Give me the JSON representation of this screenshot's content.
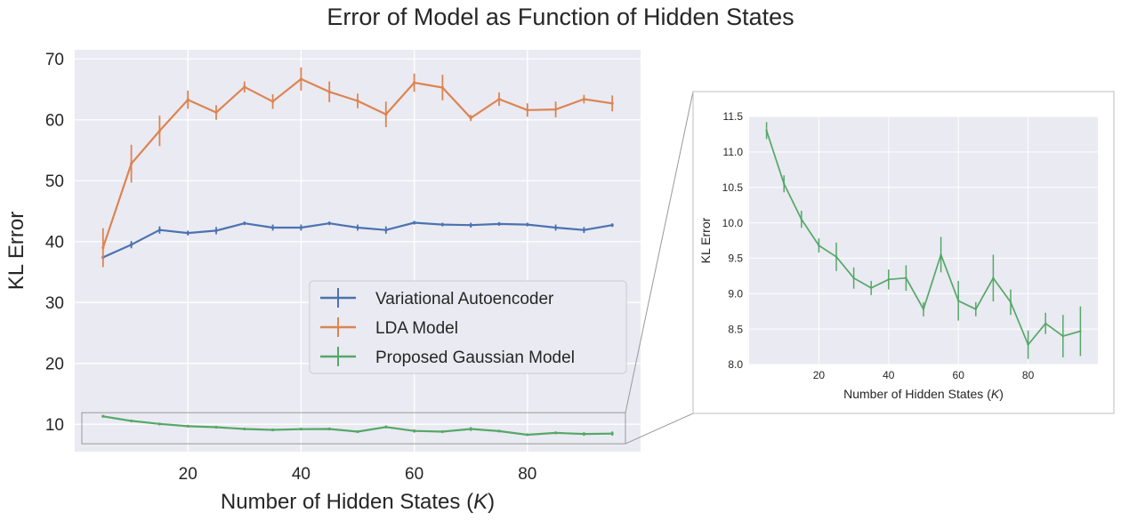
{
  "figure": {
    "title": "Error of Model as Function of Hidden States"
  },
  "colors": {
    "plot_background": "#eaeaf2",
    "grid": "#ffffff",
    "vae": "#4c72b0",
    "lda": "#dd8452",
    "gaussian": "#55a868",
    "connector": "#999999"
  },
  "chart_data": [
    {
      "id": "main",
      "type": "line",
      "title": "Error of Model as Function of Hidden States",
      "xlabel_prefix": "Number of Hidden States (",
      "xlabel_var": "K",
      "xlabel_suffix": ")",
      "ylabel": "KL Error",
      "xlim": [
        0,
        100
      ],
      "ylim": [
        5.5,
        71.5
      ],
      "xticks": [
        20,
        40,
        60,
        80
      ],
      "yticks": [
        10,
        20,
        30,
        40,
        50,
        60,
        70
      ],
      "grid": true,
      "error_bars": true,
      "legend": "center-right",
      "x": [
        5,
        10,
        15,
        20,
        25,
        30,
        35,
        40,
        45,
        50,
        55,
        60,
        65,
        70,
        75,
        80,
        85,
        90,
        95
      ],
      "series": [
        {
          "name": "Variational Autoencoder",
          "color_key": "vae",
          "values": [
            37.4,
            39.5,
            41.9,
            41.4,
            41.8,
            43.0,
            42.3,
            42.3,
            43.0,
            42.3,
            41.9,
            43.1,
            42.8,
            42.7,
            42.9,
            42.8,
            42.3,
            41.9,
            42.7
          ],
          "errors": [
            0.3,
            0.6,
            0.6,
            0.4,
            0.6,
            0.3,
            0.5,
            0.5,
            0.3,
            0.5,
            0.6,
            0.3,
            0.3,
            0.4,
            0.3,
            0.3,
            0.5,
            0.5,
            0.3
          ]
        },
        {
          "name": "LDA Model",
          "color_key": "lda",
          "values": [
            39.0,
            52.8,
            58.2,
            63.3,
            61.2,
            65.4,
            63.0,
            66.7,
            64.6,
            63.1,
            60.9,
            66.1,
            65.3,
            60.3,
            63.4,
            61.6,
            61.7,
            63.4,
            62.7
          ],
          "errors": [
            3.2,
            3.1,
            2.5,
            1.5,
            1.2,
            0.9,
            1.2,
            1.9,
            1.7,
            1.2,
            2.1,
            1.5,
            2.1,
            0.5,
            1.1,
            1.1,
            1.3,
            0.7,
            1.3
          ]
        },
        {
          "name": "Proposed Gaussian Model",
          "color_key": "gaussian",
          "values": [
            11.3,
            10.55,
            10.05,
            9.68,
            9.52,
            9.22,
            9.08,
            9.2,
            9.22,
            8.78,
            9.55,
            8.9,
            8.78,
            9.22,
            8.88,
            8.28,
            8.58,
            8.4,
            8.47
          ],
          "errors": [
            0.12,
            0.12,
            0.12,
            0.1,
            0.2,
            0.15,
            0.1,
            0.14,
            0.18,
            0.1,
            0.25,
            0.28,
            0.1,
            0.33,
            0.18,
            0.2,
            0.15,
            0.3,
            0.35
          ]
        }
      ]
    },
    {
      "id": "inset",
      "type": "line",
      "title": "",
      "xlabel_prefix": "Number of Hidden States (",
      "xlabel_var": "K",
      "xlabel_suffix": ")",
      "ylabel": "KL Error",
      "xlim": [
        0,
        100
      ],
      "ylim": [
        8.0,
        11.5
      ],
      "xticks": [
        20,
        40,
        60,
        80
      ],
      "yticks": [
        8.0,
        8.5,
        9.0,
        9.5,
        10.0,
        10.5,
        11.0,
        11.5
      ],
      "ytick_labels": [
        "8.0",
        "8.5",
        "9.0",
        "9.5",
        "10.0",
        "10.5",
        "11.0",
        "11.5"
      ],
      "grid": true,
      "error_bars": true,
      "zoom_of": "Proposed Gaussian Model",
      "zoom_ylim": [
        6.8,
        11.9
      ]
    }
  ]
}
